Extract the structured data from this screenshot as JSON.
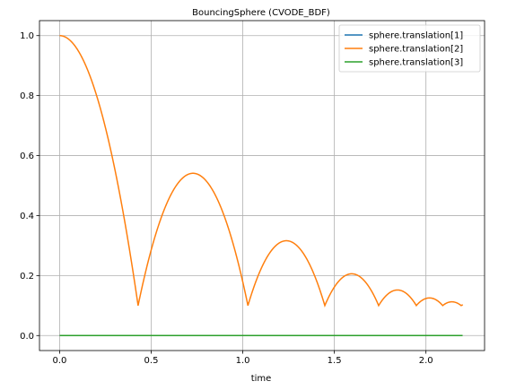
{
  "chart_data": {
    "type": "line",
    "title": "BouncingSphere (CVODE_BDF)",
    "xlabel": "time",
    "ylabel": "",
    "xlim": [
      -0.11,
      2.32
    ],
    "ylim": [
      -0.05,
      1.05
    ],
    "xticks": [
      0.0,
      0.5,
      1.0,
      1.5,
      2.0
    ],
    "xtick_labels": [
      "0.0",
      "0.5",
      "1.0",
      "1.5",
      "2.0"
    ],
    "yticks": [
      0.0,
      0.2,
      0.4,
      0.6,
      0.8,
      1.0
    ],
    "ytick_labels": [
      "0.0",
      "0.2",
      "0.4",
      "0.6",
      "0.8",
      "1.0"
    ],
    "grid": true,
    "legend_position": "top-right",
    "bounce": {
      "g": 9.81,
      "y0": 1.0,
      "floor": 0.1,
      "restitution": 0.7,
      "t_end": 2.2
    },
    "series": [
      {
        "name": "sphere.translation[1]",
        "color": "#1f77b4",
        "kind": "constant",
        "value": 0.0
      },
      {
        "name": "sphere.translation[2]",
        "color": "#ff7f0e",
        "kind": "bounce"
      },
      {
        "name": "sphere.translation[3]",
        "color": "#2ca02c",
        "kind": "constant",
        "value": 0.0
      }
    ]
  }
}
